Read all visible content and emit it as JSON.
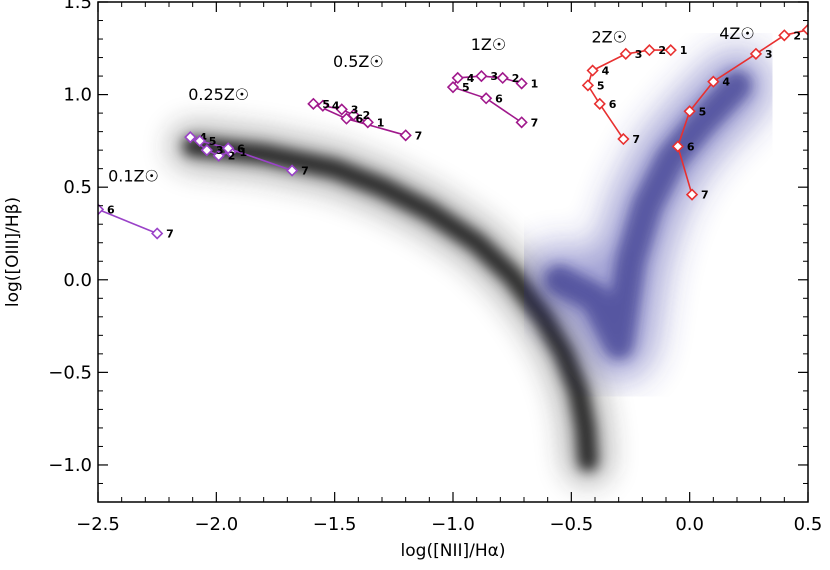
{
  "chart_data": {
    "type": "scatter",
    "title": "",
    "xlabel": "log([NII]/Hα)",
    "ylabel": "log([OIII]/Hβ)",
    "xlim": [
      -2.5,
      0.5
    ],
    "ylim": [
      -1.2,
      1.5
    ],
    "x_ticks": [
      -2.5,
      -2.0,
      -1.5,
      -1.0,
      -0.5,
      0.0,
      0.5
    ],
    "x_tick_labels": [
      "−2.5",
      "−2.0",
      "−1.5",
      "−1.0",
      "−0.5",
      "0.0",
      "0.5"
    ],
    "y_ticks": [
      -1.0,
      -0.5,
      0.0,
      0.5,
      1.0,
      1.5
    ],
    "y_tick_labels": [
      "−1.0",
      "−0.5",
      "0.0",
      "0.5",
      "1.0",
      "1.5"
    ],
    "backgrounds": [
      {
        "name": "star-forming galaxies (grey density)",
        "color": "#202020",
        "ridge": [
          [
            -2.1,
            0.72
          ],
          [
            -1.8,
            0.68
          ],
          [
            -1.5,
            0.6
          ],
          [
            -1.3,
            0.5
          ],
          [
            -1.1,
            0.37
          ],
          [
            -0.9,
            0.2
          ],
          [
            -0.75,
            0.02
          ],
          [
            -0.62,
            -0.2
          ],
          [
            -0.53,
            -0.4
          ],
          [
            -0.47,
            -0.6
          ],
          [
            -0.44,
            -0.8
          ],
          [
            -0.43,
            -0.98
          ]
        ]
      },
      {
        "name": "AGN / composite galaxies (blue density)",
        "color": "#2c2c9c",
        "ridge": [
          [
            -0.55,
            0.0
          ],
          [
            -0.4,
            -0.1
          ],
          [
            -0.3,
            -0.35
          ],
          [
            -0.25,
            0.1
          ],
          [
            -0.18,
            0.4
          ],
          [
            -0.08,
            0.65
          ],
          [
            0.05,
            0.85
          ],
          [
            0.2,
            1.05
          ]
        ]
      }
    ],
    "series": [
      {
        "name": "0.1Z☉",
        "color": "#9a42c8",
        "points": [
          [
            -2.5,
            0.38
          ],
          [
            -2.25,
            0.25
          ]
        ],
        "point_labels": [
          "6",
          "7"
        ]
      },
      {
        "name": "0.25Z☉",
        "color": "#9a42c8",
        "points": [
          [
            -1.94,
            0.69
          ],
          [
            -1.99,
            0.67
          ],
          [
            -2.04,
            0.7
          ],
          [
            -2.11,
            0.77
          ],
          [
            -2.07,
            0.75
          ],
          [
            -1.95,
            0.71
          ],
          [
            -1.68,
            0.59
          ]
        ],
        "point_labels": [
          "1",
          "2",
          "3",
          "4",
          "5",
          "6",
          "7"
        ]
      },
      {
        "name": "0.5Z☉",
        "color": "#a0198c",
        "points": [
          [
            -1.36,
            0.85
          ],
          [
            -1.42,
            0.89
          ],
          [
            -1.47,
            0.92
          ],
          [
            -1.55,
            0.94
          ],
          [
            -1.59,
            0.95
          ],
          [
            -1.45,
            0.87
          ],
          [
            -1.2,
            0.78
          ]
        ],
        "point_labels": [
          "1",
          "2",
          "3",
          "4",
          "5",
          "6",
          "7"
        ]
      },
      {
        "name": "1Z☉",
        "color": "#a0198c",
        "points": [
          [
            -0.71,
            1.06
          ],
          [
            -0.79,
            1.09
          ],
          [
            -0.88,
            1.1
          ],
          [
            -0.98,
            1.09
          ],
          [
            -1.0,
            1.04
          ],
          [
            -0.86,
            0.98
          ],
          [
            -0.71,
            0.85
          ]
        ],
        "point_labels": [
          "1",
          "2",
          "3",
          "4",
          "5",
          "6",
          "7"
        ]
      },
      {
        "name": "2Z☉",
        "color": "#e83030",
        "points": [
          [
            -0.08,
            1.24
          ],
          [
            -0.17,
            1.24
          ],
          [
            -0.27,
            1.22
          ],
          [
            -0.41,
            1.13
          ],
          [
            -0.43,
            1.05
          ],
          [
            -0.38,
            0.95
          ],
          [
            -0.28,
            0.76
          ]
        ],
        "point_labels": [
          "1",
          "2",
          "3",
          "4",
          "5",
          "6",
          "7"
        ]
      },
      {
        "name": "4Z☉",
        "color": "#e83030",
        "points": [
          [
            0.5,
            1.35
          ],
          [
            0.4,
            1.32
          ],
          [
            0.28,
            1.22
          ],
          [
            0.1,
            1.07
          ],
          [
            0.0,
            0.91
          ],
          [
            -0.05,
            0.72
          ],
          [
            0.01,
            0.46
          ]
        ],
        "point_labels": [
          "1",
          "2",
          "3",
          "4",
          "5",
          "6",
          "7"
        ]
      }
    ],
    "annotations": [
      {
        "text": "0.1Z☉",
        "x": -2.35,
        "y": 0.53
      },
      {
        "text": "0.25Z☉",
        "x": -1.99,
        "y": 0.97
      },
      {
        "text": "0.5Z☉",
        "x": -1.4,
        "y": 1.15
      },
      {
        "text": "1Z☉",
        "x": -0.85,
        "y": 1.24
      },
      {
        "text": "2Z☉",
        "x": -0.34,
        "y": 1.28
      },
      {
        "text": "4Z☉",
        "x": 0.2,
        "y": 1.3
      }
    ]
  }
}
